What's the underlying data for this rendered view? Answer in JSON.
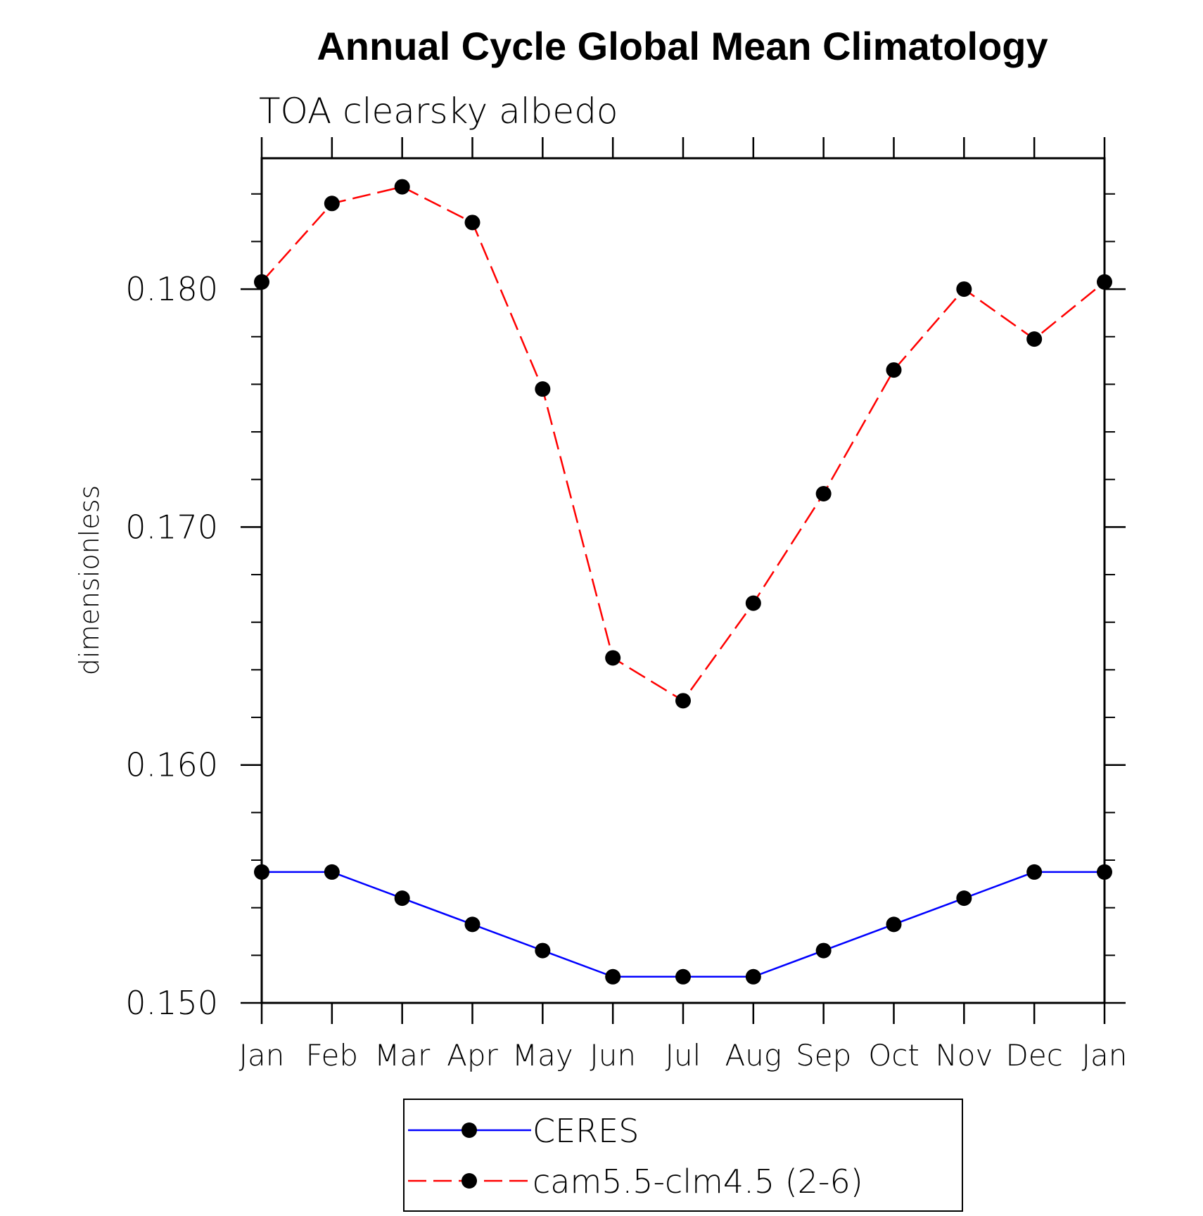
{
  "chart_data": {
    "type": "line",
    "title": "Annual Cycle Global Mean Climatology",
    "subtitle": "TOA clearsky albedo",
    "ylabel": "dimensionless",
    "xlabel": "",
    "categories": [
      "Jan",
      "Feb",
      "Mar",
      "Apr",
      "May",
      "Jun",
      "Jul",
      "Aug",
      "Sep",
      "Oct",
      "Nov",
      "Dec",
      "Jan"
    ],
    "ylim": [
      0.15,
      0.1855
    ],
    "yticks_major": [
      0.15,
      0.16,
      0.17,
      0.18
    ],
    "ytick_labels": [
      "0.150",
      "0.160",
      "0.170",
      "0.180"
    ],
    "series": [
      {
        "name": "CERES",
        "color": "#0000ff",
        "line_style": "solid",
        "values": [
          0.1555,
          0.1555,
          0.1544,
          0.1533,
          0.1522,
          0.1511,
          0.1511,
          0.1511,
          0.1522,
          0.1533,
          0.1544,
          0.1555,
          0.1555
        ]
      },
      {
        "name": "cam5.5-clm4.5 (2-6)",
        "color": "#ff0000",
        "line_style": "dashed",
        "values": [
          0.1803,
          0.1836,
          0.1843,
          0.1828,
          0.1758,
          0.1645,
          0.1627,
          0.1668,
          0.1714,
          0.1766,
          0.18,
          0.1779,
          0.1803
        ]
      }
    ],
    "marker": "filled-circle",
    "marker_color": "#000000",
    "legend_position": "bottom-center",
    "grid": false
  }
}
